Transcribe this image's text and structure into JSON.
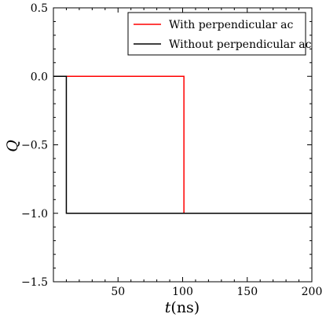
{
  "chart_data": {
    "type": "line",
    "xlabel_var": "t",
    "xlabel_unit": "(ns)",
    "ylabel": "Q",
    "xlim": [
      0,
      200
    ],
    "ylim": [
      -1.5,
      0.5
    ],
    "x_ticks": [
      50,
      100,
      150,
      200
    ],
    "x_tick_labels": [
      "50",
      "100",
      "150",
      "200"
    ],
    "y_ticks": [
      0.5,
      0.0,
      -0.5,
      -1.0,
      -1.5
    ],
    "y_tick_labels": [
      "0.5",
      "0.0",
      "−0.5",
      "−1.0",
      "−1.5"
    ],
    "grid": false,
    "legend_position": "top-right",
    "series": [
      {
        "name": "With perpendicular ac",
        "color": "#ff0000",
        "x": [
          0,
          101,
          101,
          200
        ],
        "y": [
          0.0,
          0.0,
          -1.0,
          -1.0
        ]
      },
      {
        "name": "Without perpendicular ac",
        "color": "#000000",
        "x": [
          0,
          10,
          10,
          200
        ],
        "y": [
          0.0,
          0.0,
          -1.0,
          -1.0
        ]
      }
    ]
  }
}
